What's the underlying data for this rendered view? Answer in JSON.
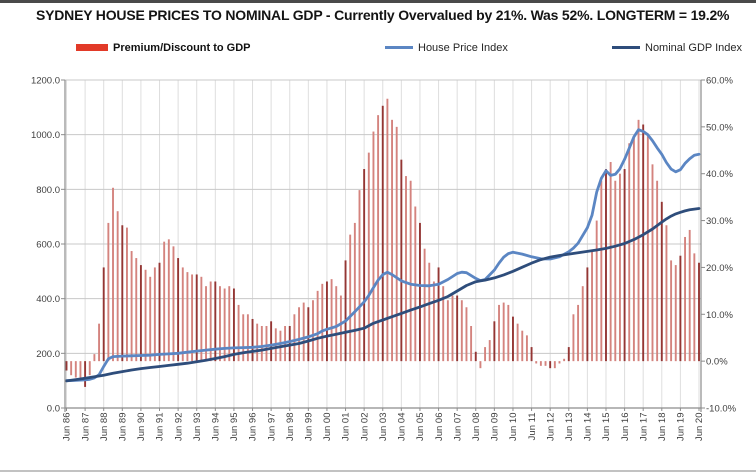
{
  "page": {
    "title": "SYDNEY HOUSE PRICES TO NOMINAL GDP - Currently Overvalued by 21%. Was 52%. LONGTERM = 19.2%"
  },
  "legend": {
    "items": [
      {
        "label": "Premium/Discount to GDP",
        "type": "bar",
        "color": "#e23a28"
      },
      {
        "label": "House Price Index",
        "type": "line",
        "color": "#5b86c3"
      },
      {
        "label": "Nominal GDP Index",
        "type": "line",
        "color": "#2e4d7b"
      }
    ]
  },
  "chart_data": {
    "type": "bar",
    "combo": "quarterly bars on right % axis + two index lines on left axis",
    "title": "SYDNEY HOUSE PRICES TO NOMINAL GDP - Currently Overvalued by 21%. Was 52%. LONGTERM = 19.2%",
    "legend_position": "top",
    "grid": "horizontal and vertical light grey",
    "left_axis": {
      "labels": [
        "0.0",
        "200.0",
        "400.0",
        "600.0",
        "800.0",
        "1000.0",
        "1200.0"
      ],
      "values": [
        0,
        200,
        400,
        600,
        800,
        1000,
        1200
      ],
      "min": 0,
      "max": 1200
    },
    "right_axis": {
      "labels": [
        "-10.0%",
        "0.0%",
        "10.0%",
        "20.0%",
        "30.0%",
        "40.0%",
        "50.0%",
        "60.0%"
      ],
      "values": [
        -10,
        0,
        10,
        20,
        30,
        40,
        50,
        60
      ],
      "min": -10,
      "max": 60
    },
    "x_axis": {
      "labels": [
        "Jun 86",
        "Jun 87",
        "Jun 88",
        "Jun 89",
        "Jun 90",
        "Jun 91",
        "Jun 92",
        "Jun 93",
        "Jun 94",
        "Jun 95",
        "Jun 96",
        "Jun 97",
        "Jun 98",
        "Jun 99",
        "Jun 00",
        "Jun 01",
        "Jun 02",
        "Jun 03",
        "Jun 04",
        "Jun 05",
        "Jun 06",
        "Jun 07",
        "Jun 08",
        "Jun 09",
        "Jun 10",
        "Jun 11",
        "Jun 12",
        "Jun 13",
        "Jun 14",
        "Jun 15",
        "Jun 16",
        "Jun 17",
        "Jun 18",
        "Jun 19",
        "Jun 20"
      ],
      "start_year": 1986.5,
      "years_span": 34
    },
    "bars": {
      "name": "Premium/Discount to GDP",
      "axis": "right",
      "unit": "%",
      "frequency": "quarterly",
      "first_period": "Jun 86",
      "last_period": "Jun 20",
      "color_light": "#d4837e",
      "color_dark": "#943634",
      "values": [
        -2,
        -3,
        -3.5,
        -3.5,
        -5.5,
        -3,
        1.5,
        8,
        20,
        29.5,
        37,
        32,
        29,
        28.5,
        23.5,
        22,
        20.5,
        19.5,
        18,
        20,
        21,
        25.5,
        26,
        24.5,
        22,
        20,
        19,
        18.5,
        18.5,
        18,
        16,
        17,
        17,
        16,
        15.5,
        16,
        15.5,
        12,
        10,
        10,
        9,
        8,
        7.5,
        7.5,
        8.5,
        7,
        6.5,
        7.5,
        7.5,
        10,
        11.5,
        12.5,
        11.5,
        13,
        15,
        16.5,
        17,
        17.5,
        16,
        14,
        21.5,
        27,
        29.5,
        36.5,
        41,
        44.5,
        49,
        52.5,
        54.5,
        56,
        51.5,
        50,
        43,
        39.5,
        38.5,
        33,
        29.5,
        24,
        21,
        17,
        20,
        16,
        13,
        14,
        14,
        13,
        11.5,
        7.5,
        2,
        -1.5,
        3,
        4.5,
        8.5,
        12,
        12.5,
        12,
        9.5,
        8,
        6.5,
        5.5,
        3,
        -0.5,
        -1,
        -1,
        -1.5,
        -1.5,
        -0.5,
        0.5,
        3,
        10,
        12,
        16,
        20,
        23.5,
        30,
        38.5,
        41,
        42.5,
        38.5,
        40,
        41,
        46.5,
        48,
        51.5,
        50.5,
        48,
        42,
        38.5,
        34,
        29,
        21.5,
        20.5,
        22.5,
        26.5,
        28,
        23,
        21
      ]
    },
    "series": [
      {
        "name": "House Price Index",
        "axis": "left",
        "color": "#5b86c3",
        "width": 2.8,
        "points": [
          [
            1986.5,
            100
          ],
          [
            1987,
            101
          ],
          [
            1987.5,
            103
          ],
          [
            1987.75,
            105
          ],
          [
            1988,
            110
          ],
          [
            1988.25,
            122
          ],
          [
            1988.5,
            152
          ],
          [
            1988.75,
            180
          ],
          [
            1989,
            188
          ],
          [
            1989.5,
            190
          ],
          [
            1990,
            191
          ],
          [
            1990.5,
            192
          ],
          [
            1991,
            193
          ],
          [
            1991.5,
            196
          ],
          [
            1992,
            198
          ],
          [
            1992.5,
            200
          ],
          [
            1993,
            204
          ],
          [
            1993.5,
            208
          ],
          [
            1994,
            212
          ],
          [
            1994.5,
            215
          ],
          [
            1995,
            218
          ],
          [
            1995.5,
            220
          ],
          [
            1996,
            221
          ],
          [
            1996.5,
            222
          ],
          [
            1997,
            225
          ],
          [
            1997.5,
            230
          ],
          [
            1998,
            236
          ],
          [
            1998.5,
            243
          ],
          [
            1999,
            251
          ],
          [
            1999.5,
            260
          ],
          [
            2000,
            272
          ],
          [
            2000.25,
            282
          ],
          [
            2000.5,
            288
          ],
          [
            2001,
            298
          ],
          [
            2001.5,
            318
          ],
          [
            2001.75,
            335
          ],
          [
            2002,
            352
          ],
          [
            2002.5,
            388
          ],
          [
            2002.75,
            412
          ],
          [
            2003,
            440
          ],
          [
            2003.25,
            468
          ],
          [
            2003.5,
            488
          ],
          [
            2003.75,
            497
          ],
          [
            2004,
            488
          ],
          [
            2004.5,
            465
          ],
          [
            2005,
            453
          ],
          [
            2005.5,
            448
          ],
          [
            2006,
            447
          ],
          [
            2006.5,
            453
          ],
          [
            2007,
            470
          ],
          [
            2007.5,
            492
          ],
          [
            2007.75,
            497
          ],
          [
            2008,
            495
          ],
          [
            2008.5,
            474
          ],
          [
            2008.75,
            466
          ],
          [
            2009,
            470
          ],
          [
            2009.5,
            505
          ],
          [
            2009.75,
            530
          ],
          [
            2010,
            552
          ],
          [
            2010.25,
            565
          ],
          [
            2010.5,
            570
          ],
          [
            2011,
            563
          ],
          [
            2011.5,
            553
          ],
          [
            2012,
            546
          ],
          [
            2012.5,
            545
          ],
          [
            2013,
            553
          ],
          [
            2013.5,
            572
          ],
          [
            2013.75,
            585
          ],
          [
            2014,
            603
          ],
          [
            2014.5,
            660
          ],
          [
            2014.75,
            705
          ],
          [
            2015,
            790
          ],
          [
            2015.25,
            840
          ],
          [
            2015.5,
            868
          ],
          [
            2015.75,
            851
          ],
          [
            2016,
            855
          ],
          [
            2016.25,
            875
          ],
          [
            2016.5,
            910
          ],
          [
            2016.75,
            950
          ],
          [
            2017,
            992
          ],
          [
            2017.25,
            1018
          ],
          [
            2017.5,
            1012
          ],
          [
            2017.75,
            1000
          ],
          [
            2018,
            978
          ],
          [
            2018.25,
            952
          ],
          [
            2018.5,
            928
          ],
          [
            2018.75,
            898
          ],
          [
            2019,
            874
          ],
          [
            2019.25,
            864
          ],
          [
            2019.5,
            872
          ],
          [
            2019.75,
            895
          ],
          [
            2020,
            912
          ],
          [
            2020.25,
            925
          ],
          [
            2020.5,
            928
          ]
        ]
      },
      {
        "name": "Nominal GDP Index",
        "axis": "left",
        "color": "#2e4d7b",
        "width": 2.8,
        "points": [
          [
            1986.5,
            99
          ],
          [
            1987,
            104
          ],
          [
            1987.5,
            109
          ],
          [
            1988,
            114
          ],
          [
            1988.5,
            120
          ],
          [
            1989,
            127
          ],
          [
            1989.5,
            133
          ],
          [
            1990,
            139
          ],
          [
            1990.5,
            144
          ],
          [
            1991,
            148
          ],
          [
            1991.5,
            152
          ],
          [
            1992,
            156
          ],
          [
            1992.5,
            160
          ],
          [
            1993,
            164
          ],
          [
            1993.5,
            169
          ],
          [
            1994,
            175
          ],
          [
            1994.5,
            181
          ],
          [
            1995,
            188
          ],
          [
            1995.5,
            196
          ],
          [
            1996,
            202
          ],
          [
            1996.5,
            207
          ],
          [
            1997,
            212
          ],
          [
            1997.5,
            218
          ],
          [
            1998,
            224
          ],
          [
            1998.5,
            230
          ],
          [
            1999,
            236
          ],
          [
            1999.5,
            245
          ],
          [
            2000,
            255
          ],
          [
            2000.5,
            263
          ],
          [
            2001,
            270
          ],
          [
            2001.5,
            277
          ],
          [
            2002,
            284
          ],
          [
            2002.5,
            292
          ],
          [
            2003,
            310
          ],
          [
            2003.5,
            322
          ],
          [
            2004,
            334
          ],
          [
            2004.5,
            346
          ],
          [
            2005,
            358
          ],
          [
            2005.5,
            370
          ],
          [
            2006,
            382
          ],
          [
            2006.5,
            394
          ],
          [
            2007,
            408
          ],
          [
            2007.5,
            428
          ],
          [
            2008,
            448
          ],
          [
            2008.5,
            462
          ],
          [
            2008.75,
            465
          ],
          [
            2009,
            468
          ],
          [
            2009.5,
            476
          ],
          [
            2010,
            487
          ],
          [
            2010.5,
            500
          ],
          [
            2011,
            515
          ],
          [
            2011.5,
            530
          ],
          [
            2012,
            543
          ],
          [
            2012.5,
            552
          ],
          [
            2013,
            558
          ],
          [
            2013.5,
            563
          ],
          [
            2014,
            568
          ],
          [
            2014.5,
            573
          ],
          [
            2015,
            578
          ],
          [
            2015.5,
            584
          ],
          [
            2016,
            592
          ],
          [
            2016.5,
            602
          ],
          [
            2017,
            616
          ],
          [
            2017.5,
            634
          ],
          [
            2018,
            655
          ],
          [
            2018.5,
            680
          ],
          [
            2018.75,
            692
          ],
          [
            2019,
            702
          ],
          [
            2019.25,
            710
          ],
          [
            2019.5,
            716
          ],
          [
            2019.75,
            721
          ],
          [
            2020,
            725
          ],
          [
            2020.5,
            730
          ]
        ]
      }
    ],
    "annotations": {
      "current_premium_pct": 21,
      "peak_premium_pct": 52,
      "longterm_premium_pct": 19.2
    },
    "colors": {
      "h_gridline": "#c8c8c8",
      "v_gridline": "#dedede",
      "axis_line": "#8c8c8c",
      "tick_label": "#3f3f3f"
    }
  }
}
